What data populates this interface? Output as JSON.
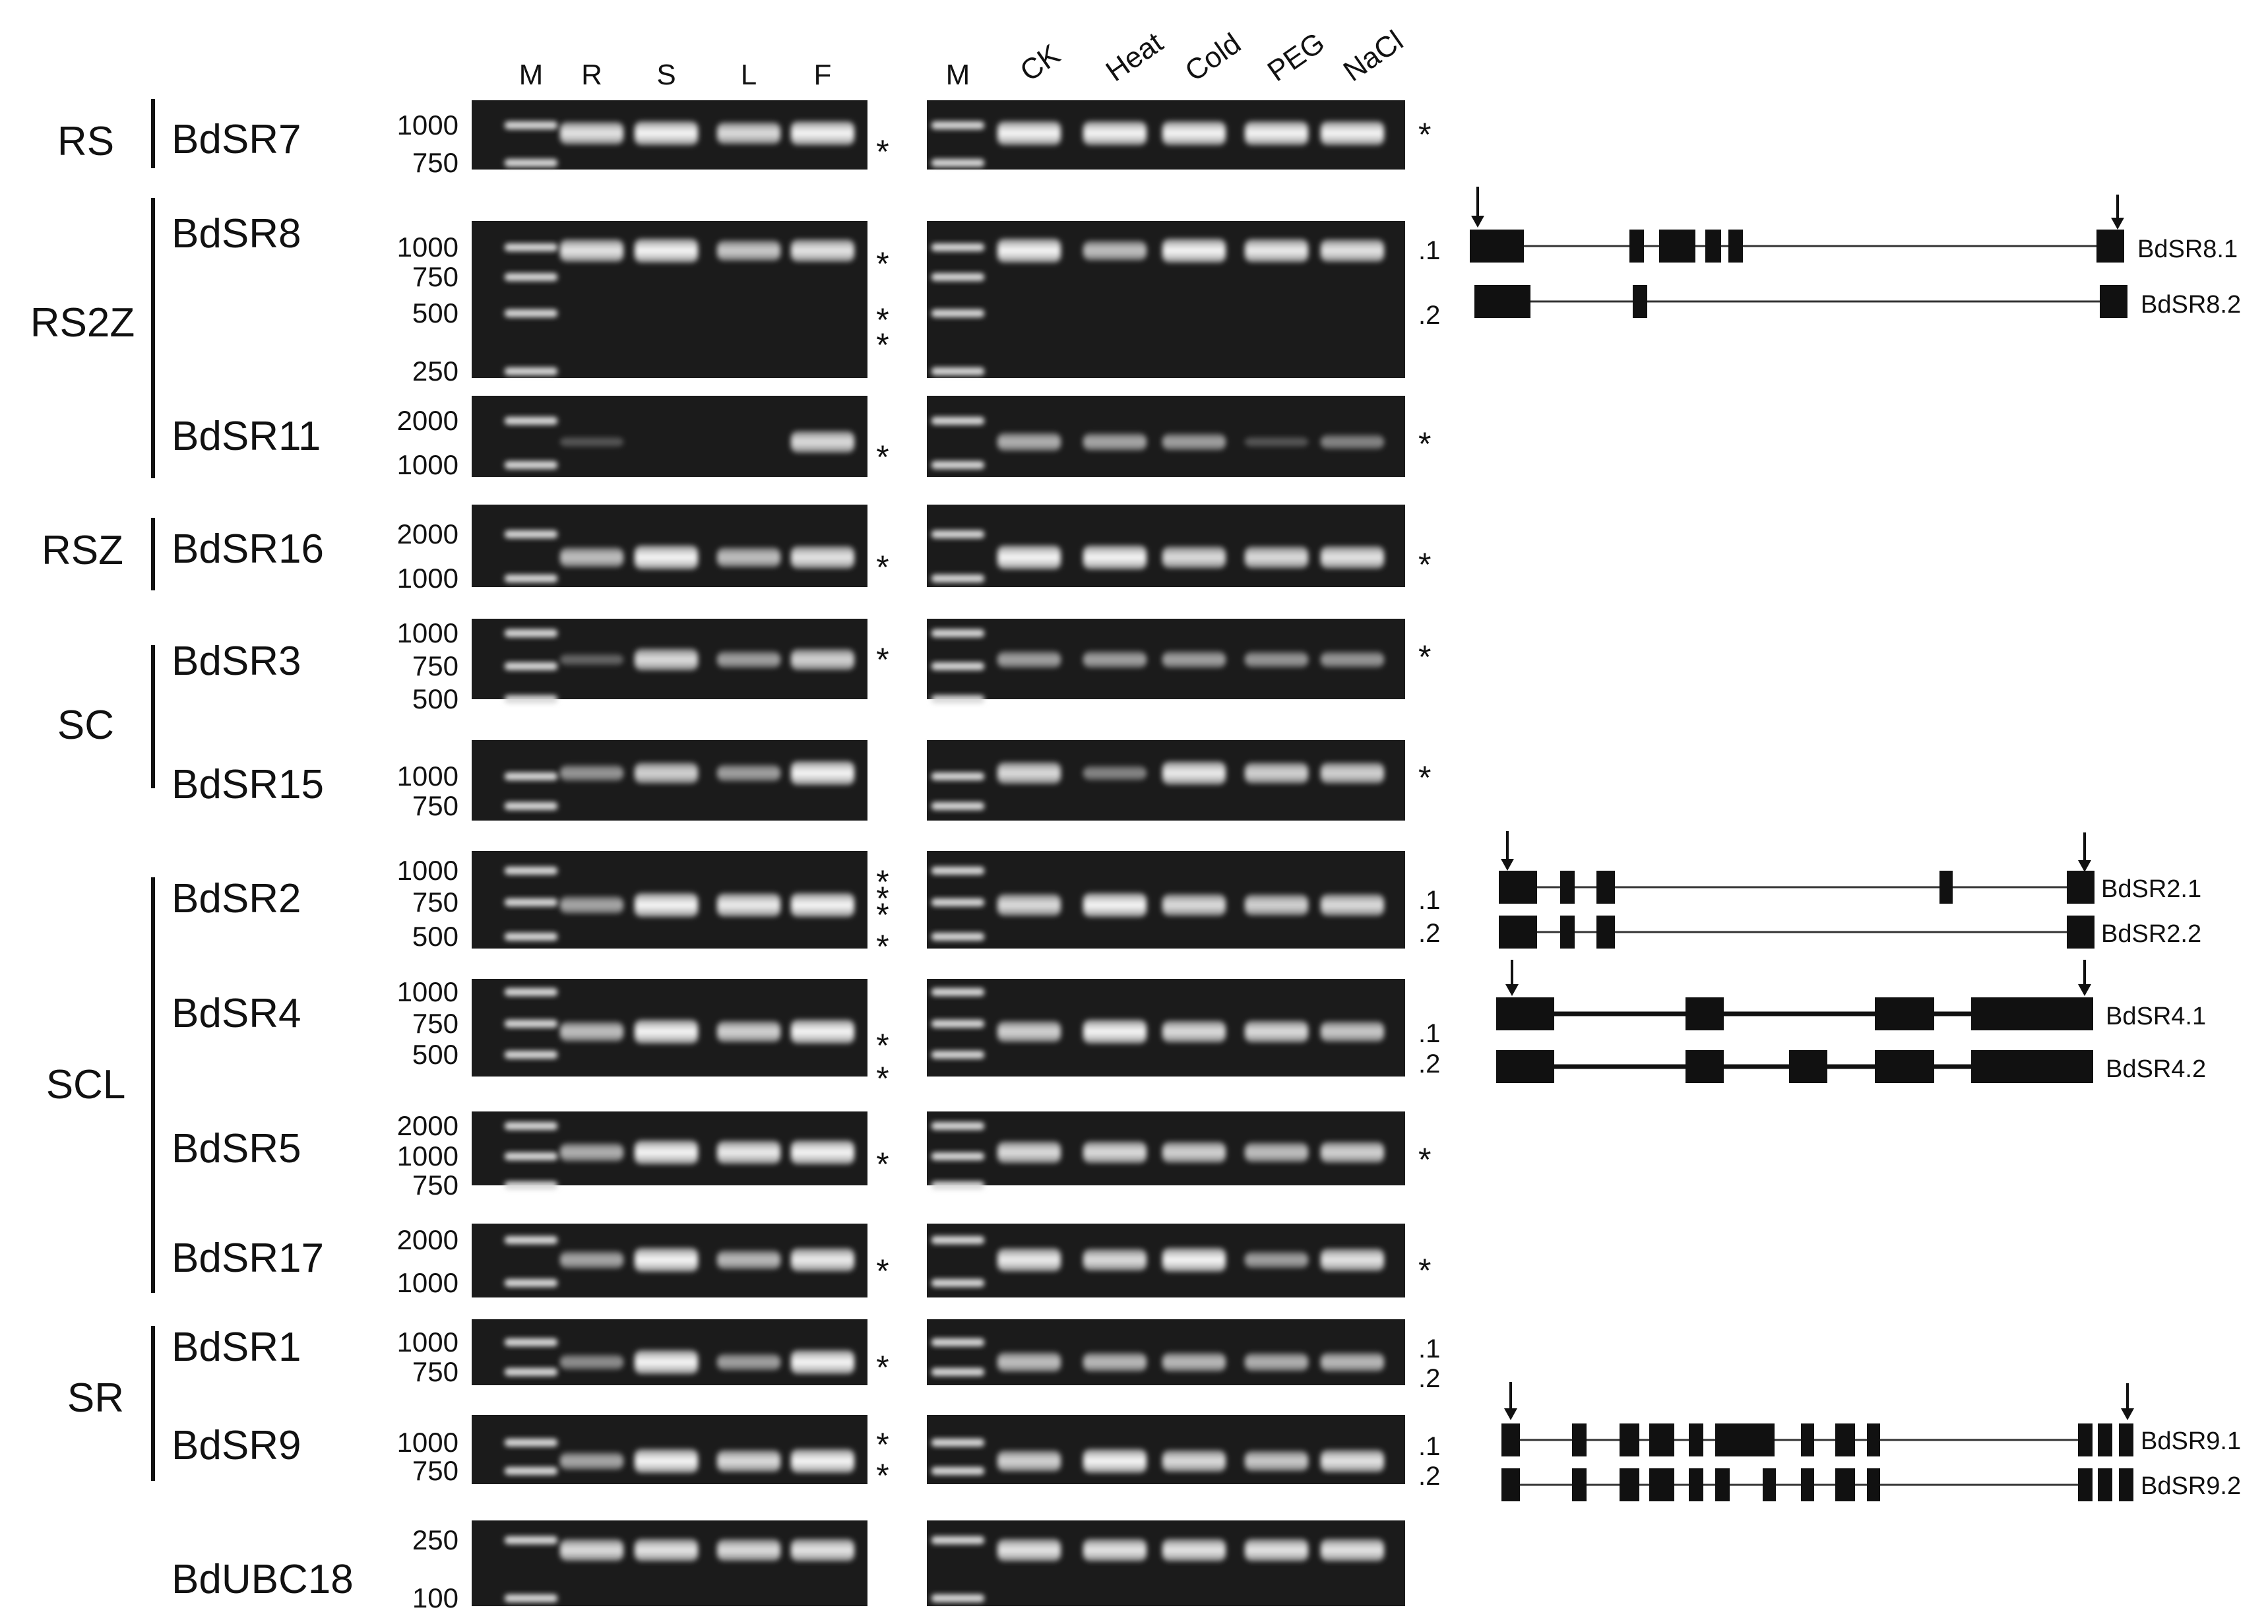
{
  "lane_labels": {
    "tissue": [
      "M",
      "R",
      "S",
      "L",
      "F"
    ],
    "stress": [
      "M",
      "CK",
      "Heat",
      "Cold",
      "PEG",
      "NaCl"
    ]
  },
  "groups": [
    "RS",
    "RS2Z",
    "RSZ",
    "SC",
    "SCL",
    "SR"
  ],
  "genes": [
    {
      "name": "BdSR7",
      "markers": [
        "1000",
        "750"
      ],
      "tissue_bands": [
        0,
        0.9,
        1.0,
        0.85,
        1.0
      ],
      "stress_bands": [
        0,
        1.0,
        1.0,
        1.0,
        1.0,
        1.0
      ],
      "tissue_stars": [
        "*"
      ],
      "stress_marks": [
        "*"
      ]
    },
    {
      "name": "BdSR8",
      "markers": [
        "1000",
        "750",
        "500",
        "250"
      ],
      "tissue_bands": [
        0,
        0.9,
        1.0,
        0.75,
        0.9
      ],
      "stress_bands": [
        0,
        1.0,
        0.7,
        1.0,
        0.95,
        0.9
      ],
      "tissue_stars": [
        "*",
        "*",
        "*"
      ],
      "stress_marks": [
        ".1",
        ".2"
      ]
    },
    {
      "name": "BdSR11",
      "markers": [
        "2000",
        "1000"
      ],
      "tissue_bands": [
        0,
        0.05,
        0.0,
        0.0,
        0.85
      ],
      "stress_bands": [
        0,
        0.6,
        0.55,
        0.5,
        0.05,
        0.35
      ],
      "tissue_stars": [
        "*"
      ],
      "stress_marks": [
        "*"
      ]
    },
    {
      "name": "BdSR16",
      "markers": [
        "2000",
        "1000"
      ],
      "tissue_bands": [
        0,
        0.7,
        1.0,
        0.7,
        0.9
      ],
      "stress_bands": [
        0,
        1.0,
        1.0,
        0.85,
        0.85,
        0.9
      ],
      "tissue_stars": [
        "*"
      ],
      "stress_marks": [
        "*"
      ]
    },
    {
      "name": "BdSR3",
      "markers": [
        "1000",
        "750",
        "500"
      ],
      "tissue_bands": [
        0,
        0.15,
        0.85,
        0.5,
        0.8
      ],
      "stress_bands": [
        0,
        0.5,
        0.5,
        0.5,
        0.45,
        0.45
      ],
      "tissue_stars": [
        "*"
      ],
      "stress_marks": [
        "*"
      ]
    },
    {
      "name": "BdSR15",
      "markers": [
        "1000",
        "750"
      ],
      "tissue_bands": [
        0,
        0.45,
        0.8,
        0.5,
        1.0
      ],
      "stress_bands": [
        0,
        0.85,
        0.35,
        0.95,
        0.8,
        0.8
      ],
      "tissue_stars": [],
      "stress_marks": [
        "*"
      ]
    },
    {
      "name": "BdSR2",
      "markers": [
        "1000",
        "750",
        "500"
      ],
      "tissue_bands": [
        0,
        0.55,
        1.0,
        0.95,
        1.0
      ],
      "stress_bands": [
        0,
        0.85,
        1.0,
        0.85,
        0.8,
        0.85
      ],
      "tissue_stars": [
        "*",
        "*",
        "*",
        "*"
      ],
      "stress_marks": [
        ".1",
        ".2"
      ]
    },
    {
      "name": "BdSR4",
      "markers": [
        "1000",
        "750",
        "500"
      ],
      "tissue_bands": [
        0,
        0.7,
        1.0,
        0.8,
        1.0
      ],
      "stress_bands": [
        0,
        0.8,
        1.0,
        0.85,
        0.85,
        0.75
      ],
      "tissue_stars": [
        "*",
        "*"
      ],
      "stress_marks": [
        ".1",
        ".2"
      ]
    },
    {
      "name": "BdSR5",
      "markers": [
        "2000",
        "1000",
        "750"
      ],
      "tissue_bands": [
        0,
        0.6,
        1.0,
        0.95,
        1.0
      ],
      "stress_bands": [
        0,
        0.85,
        0.85,
        0.8,
        0.7,
        0.8
      ],
      "tissue_stars": [
        "*"
      ],
      "stress_marks": [
        "*"
      ]
    },
    {
      "name": "BdSR17",
      "markers": [
        "2000",
        "1000"
      ],
      "tissue_bands": [
        0,
        0.55,
        1.0,
        0.65,
        0.95
      ],
      "stress_bands": [
        0,
        0.95,
        0.85,
        1.0,
        0.5,
        0.9
      ],
      "tissue_stars": [
        "*"
      ],
      "stress_marks": [
        "*"
      ]
    },
    {
      "name": "BdSR1",
      "markers": [
        "1000",
        "750"
      ],
      "tissue_bands": [
        0,
        0.4,
        1.0,
        0.5,
        1.0
      ],
      "stress_bands": [
        0,
        0.7,
        0.65,
        0.65,
        0.6,
        0.65
      ],
      "tissue_stars": [
        "*"
      ],
      "stress_marks": [
        ".1",
        ".2"
      ]
    },
    {
      "name": "BdSR9",
      "markers": [
        "1000",
        "750"
      ],
      "tissue_bands": [
        0,
        0.55,
        1.0,
        0.85,
        1.0
      ],
      "stress_bands": [
        0,
        0.8,
        1.0,
        0.85,
        0.75,
        0.9
      ],
      "tissue_stars": [
        "*",
        "*"
      ],
      "stress_marks": [
        ".1",
        ".2"
      ]
    },
    {
      "name": "BdUBC18",
      "markers": [
        "250",
        "100"
      ],
      "tissue_bands": [
        0,
        0.85,
        0.9,
        0.85,
        0.9
      ],
      "stress_bands": [
        0,
        0.9,
        0.9,
        0.9,
        0.9,
        0.9
      ],
      "tissue_stars": [],
      "stress_marks": []
    }
  ],
  "isoform_structures": [
    "BdSR8.1",
    "BdSR8.2",
    "BdSR2.1",
    "BdSR2.2",
    "BdSR4.1",
    "BdSR4.2",
    "BdSR9.1",
    "BdSR9.2"
  ]
}
